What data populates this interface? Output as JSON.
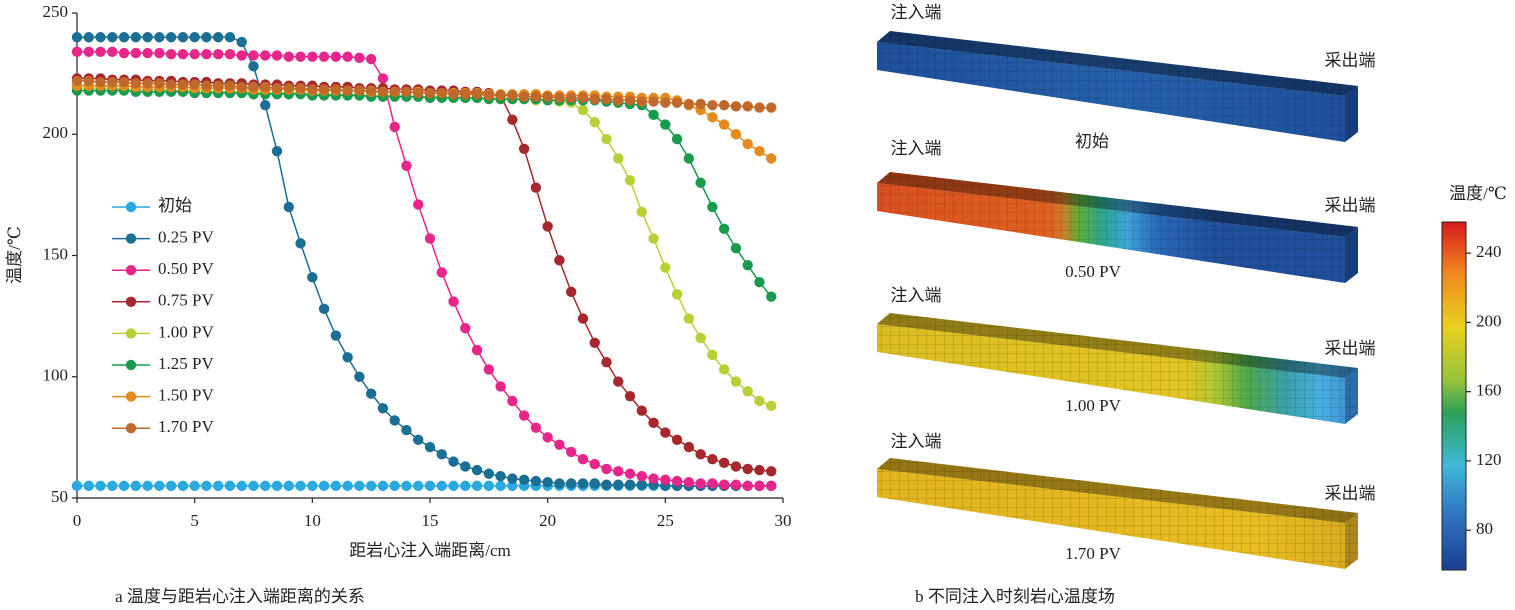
{
  "chart_data": {
    "type": "line",
    "xlabel": "距岩心注入端距离/cm",
    "ylabel": "温度/℃",
    "caption": "a 温度与距岩心注入端距离的关系",
    "x": [
      0,
      0.5,
      1,
      1.5,
      2,
      2.5,
      3,
      3.5,
      4,
      4.5,
      5,
      5.5,
      6,
      6.5,
      7,
      7.5,
      8,
      8.5,
      9,
      9.5,
      10,
      10.5,
      11,
      11.5,
      12,
      12.5,
      13,
      13.5,
      14,
      14.5,
      15,
      15.5,
      16,
      16.5,
      17,
      17.5,
      18,
      18.5,
      19,
      19.5,
      20,
      20.5,
      21,
      21.5,
      22,
      22.5,
      23,
      23.5,
      24,
      24.5,
      25,
      25.5,
      26,
      26.5,
      27,
      27.5,
      28,
      28.5,
      29,
      29.5
    ],
    "series": [
      {
        "name": "初始",
        "color": "#2aa9e0",
        "values": [
          55,
          55,
          55,
          55,
          55,
          55,
          55,
          55,
          55,
          55,
          55,
          55,
          55,
          55,
          55,
          55,
          55,
          55,
          55,
          55,
          55,
          55,
          55,
          55,
          55,
          55,
          55,
          55,
          55,
          55,
          55,
          55,
          55,
          55,
          55,
          55,
          55,
          55,
          55,
          55,
          55,
          55,
          55,
          55,
          55,
          55,
          55,
          55,
          55,
          55,
          55,
          55,
          55,
          55,
          55,
          55,
          55,
          55,
          55,
          55
        ]
      },
      {
        "name": "0.25 PV",
        "color": "#1b6e94",
        "values": [
          240,
          240,
          240,
          240,
          240,
          240,
          240,
          240,
          240,
          240,
          240,
          240,
          240,
          240,
          238,
          228,
          212,
          193,
          170,
          155,
          141,
          128,
          117,
          108,
          100,
          93,
          87,
          82,
          78,
          74,
          71,
          68,
          65,
          63,
          61.5,
          60,
          59,
          58,
          57.5,
          57,
          56.5,
          56,
          56,
          56,
          56,
          55.5,
          55.5,
          55.5,
          55.5,
          55.5,
          55,
          55,
          55,
          55,
          55,
          55,
          55,
          55,
          55,
          55
        ]
      },
      {
        "name": "0.50 PV",
        "color": "#e6268a",
        "values": [
          234,
          234,
          234,
          234,
          233.5,
          233.5,
          233.5,
          233.5,
          233,
          233,
          233,
          233,
          233,
          233,
          232.5,
          232.5,
          232.5,
          232.5,
          232,
          232,
          232,
          232,
          232,
          232,
          231.5,
          231,
          223,
          203,
          187,
          171,
          157,
          143,
          131,
          120,
          111,
          103,
          96,
          90,
          84,
          79,
          75,
          72,
          69,
          66,
          64,
          62,
          61,
          60,
          59,
          58,
          57.5,
          57,
          56.5,
          56,
          56,
          55.5,
          55.5,
          55,
          55,
          55
        ]
      },
      {
        "name": "0.75 PV",
        "color": "#a6272c",
        "values": [
          223,
          223,
          223,
          222.5,
          222.5,
          222.5,
          222,
          222,
          222,
          221.5,
          221.5,
          221.5,
          221,
          221,
          221,
          220.5,
          220.5,
          220.5,
          220,
          220,
          220,
          219.5,
          219.5,
          219.5,
          219,
          219,
          219,
          218.5,
          218.5,
          218.5,
          218,
          218,
          218,
          217.5,
          217.5,
          217,
          216,
          206,
          194,
          178,
          162,
          148,
          135,
          124,
          114,
          106,
          98,
          92,
          86,
          81,
          77,
          74,
          71,
          68,
          66,
          64.5,
          63,
          62,
          61.5,
          61
        ]
      },
      {
        "name": "1.00 PV",
        "color": "#b4d236",
        "values": [
          219,
          219,
          219,
          219,
          218.5,
          218.5,
          218.5,
          218.5,
          218,
          218,
          218,
          218,
          217.5,
          217.5,
          217.5,
          217.5,
          217,
          217,
          217,
          217,
          216.5,
          216.5,
          216.5,
          216.5,
          216,
          216,
          216,
          216,
          215.5,
          215.5,
          215.5,
          215.5,
          215,
          215,
          215,
          215,
          214.5,
          214.5,
          214.5,
          214,
          214,
          213.5,
          213,
          210,
          205,
          198,
          190,
          181,
          168,
          157,
          145,
          134,
          124,
          116,
          109,
          103,
          98,
          94,
          90,
          88
        ]
      },
      {
        "name": "1.25 PV",
        "color": "#1a9a4c",
        "values": [
          218,
          218,
          218,
          218,
          218,
          217.5,
          217.5,
          217.5,
          217.5,
          217.5,
          217,
          217,
          217,
          217,
          217,
          216.5,
          216.5,
          216.5,
          216.5,
          216.5,
          216,
          216,
          216,
          216,
          216,
          215.5,
          215.5,
          215.5,
          215.5,
          215.5,
          215,
          215,
          215,
          215,
          215,
          214.5,
          214.5,
          214.5,
          214.5,
          214.5,
          214,
          214,
          214,
          214,
          214,
          213.5,
          213,
          212.5,
          212,
          208,
          204,
          198,
          190,
          180,
          170,
          161,
          153,
          146,
          139,
          133
        ]
      },
      {
        "name": "1.50 PV",
        "color": "#e38b1f",
        "values": [
          220,
          220,
          220,
          220,
          220,
          219.5,
          219.5,
          219.5,
          219.5,
          219.5,
          219,
          219,
          219,
          219,
          219,
          218.5,
          218.5,
          218.5,
          218.5,
          218.5,
          218,
          218,
          218,
          218,
          218,
          217.5,
          217.5,
          217.5,
          217.5,
          217.5,
          217,
          217,
          217,
          217,
          217,
          216.5,
          216.5,
          216.5,
          216.5,
          216.5,
          216,
          216,
          216,
          216,
          216,
          215.5,
          215.5,
          215.5,
          215,
          215,
          215,
          214,
          212,
          210,
          207,
          204,
          200,
          196,
          193,
          190
        ]
      },
      {
        "name": "1.70 PV",
        "color": "#c0692b",
        "values": [
          222,
          222,
          221.5,
          221.5,
          221.5,
          221,
          221,
          221,
          220.5,
          220.5,
          220.5,
          220,
          220,
          220,
          219.5,
          219.5,
          219.5,
          219,
          219,
          219,
          218.5,
          218.5,
          218.5,
          218,
          218,
          218,
          217.5,
          217.5,
          217.5,
          217,
          217,
          217,
          216.5,
          216.5,
          216.5,
          216,
          216,
          216,
          215.5,
          215.5,
          215.5,
          215,
          215,
          215,
          214.5,
          214.5,
          214,
          214,
          213.5,
          213.5,
          213,
          213,
          212.5,
          212.5,
          212,
          212,
          211.5,
          211.5,
          211,
          211
        ]
      }
    ],
    "xlim": [
      0,
      30
    ],
    "xticks": [
      0,
      5,
      10,
      15,
      20,
      25,
      30
    ],
    "ylim": [
      50,
      250
    ],
    "yticks": [
      50,
      100,
      150,
      200,
      250
    ],
    "legend": "center-left",
    "grid": false
  },
  "panel_b": {
    "caption": "b 不同注入时刻岩心温度场",
    "boxes": [
      {
        "inlet": "注入端",
        "outlet": "采出端",
        "label": "初始"
      },
      {
        "inlet": "注入端",
        "outlet": "采出端",
        "label": "0.50 PV"
      },
      {
        "inlet": "注入端",
        "outlet": "采出端",
        "label": "1.00 PV"
      },
      {
        "inlet": "注入端",
        "outlet": "采出端",
        "label": "1.70 PV"
      }
    ],
    "colorbar": {
      "title": "温度/℃",
      "lim": [
        57,
        258
      ],
      "ticks": [
        80,
        120,
        160,
        200,
        240
      ]
    }
  }
}
